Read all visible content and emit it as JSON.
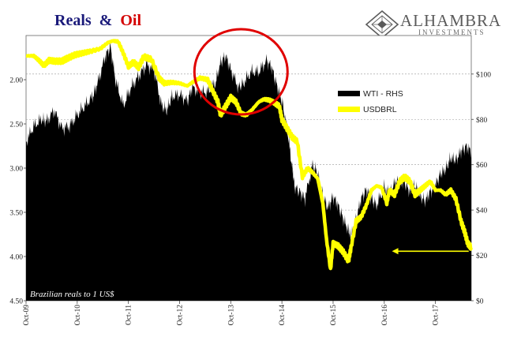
{
  "chart_data": {
    "type": "area",
    "title": {
      "part1": "Reals",
      "amp": "&",
      "part2": "Oil"
    },
    "title_colors": {
      "part1": "#1a1a7a",
      "part2": "#d40000"
    },
    "brand": {
      "name": "ALHAMBRA",
      "sub": "INVESTMENTS"
    },
    "x_ticks": [
      "Oct-09",
      "Oct-10",
      "Oct-11",
      "Oct-12",
      "Oct-13",
      "Oct-14",
      "Oct-15",
      "Oct-16",
      "Oct-17"
    ],
    "x_range": [
      2009.75,
      2018.45
    ],
    "left_axis": {
      "ticks": [
        "2.00",
        "2.50",
        "3.00",
        "3.50",
        "4.00",
        "4.50"
      ],
      "range": [
        1.5,
        4.5
      ],
      "inverted": true
    },
    "right_axis": {
      "ticks": [
        "$0",
        "$20",
        "$40",
        "$60",
        "$80",
        "$100"
      ],
      "range": [
        0,
        117
      ]
    },
    "legend": [
      {
        "name": "WTI - RHS",
        "color": "#000000"
      },
      {
        "name": "USDBRL",
        "color": "#ffff00"
      }
    ],
    "note": "Brazilian reals to 1 US$",
    "series": [
      {
        "name": "WTI - RHS",
        "axis": "right",
        "color": "#000000",
        "points": [
          [
            2009.75,
            70
          ],
          [
            2009.9,
            77
          ],
          [
            2010.05,
            80
          ],
          [
            2010.15,
            79
          ],
          [
            2010.3,
            84
          ],
          [
            2010.45,
            76
          ],
          [
            2010.6,
            77
          ],
          [
            2010.75,
            82
          ],
          [
            2010.9,
            86
          ],
          [
            2011.05,
            90
          ],
          [
            2011.15,
            96
          ],
          [
            2011.3,
            108
          ],
          [
            2011.4,
            112
          ],
          [
            2011.5,
            97
          ],
          [
            2011.65,
            86
          ],
          [
            2011.8,
            94
          ],
          [
            2011.95,
            99
          ],
          [
            2012.1,
            104
          ],
          [
            2012.25,
            102
          ],
          [
            2012.4,
            86
          ],
          [
            2012.5,
            84
          ],
          [
            2012.6,
            90
          ],
          [
            2012.75,
            91
          ],
          [
            2012.9,
            88
          ],
          [
            2013.0,
            94
          ],
          [
            2013.15,
            92
          ],
          [
            2013.3,
            92
          ],
          [
            2013.45,
            96
          ],
          [
            2013.55,
            105
          ],
          [
            2013.65,
            108
          ],
          [
            2013.75,
            102
          ],
          [
            2013.9,
            94
          ],
          [
            2014.0,
            96
          ],
          [
            2014.15,
            101
          ],
          [
            2014.3,
            101
          ],
          [
            2014.45,
            106
          ],
          [
            2014.55,
            103
          ],
          [
            2014.65,
            95
          ],
          [
            2014.75,
            88
          ],
          [
            2014.85,
            76
          ],
          [
            2014.95,
            59
          ],
          [
            2015.0,
            50
          ],
          [
            2015.1,
            48
          ],
          [
            2015.2,
            45
          ],
          [
            2015.35,
            60
          ],
          [
            2015.45,
            56
          ],
          [
            2015.55,
            46
          ],
          [
            2015.65,
            41
          ],
          [
            2015.75,
            46
          ],
          [
            2015.85,
            42
          ],
          [
            2015.95,
            36
          ],
          [
            2016.05,
            31
          ],
          [
            2016.1,
            28
          ],
          [
            2016.2,
            36
          ],
          [
            2016.3,
            45
          ],
          [
            2016.4,
            49
          ],
          [
            2016.5,
            45
          ],
          [
            2016.6,
            42
          ],
          [
            2016.75,
            50
          ],
          [
            2016.85,
            47
          ],
          [
            2016.95,
            52
          ],
          [
            2017.05,
            53
          ],
          [
            2017.15,
            52
          ],
          [
            2017.25,
            48
          ],
          [
            2017.35,
            51
          ],
          [
            2017.45,
            46
          ],
          [
            2017.55,
            44
          ],
          [
            2017.65,
            48
          ],
          [
            2017.75,
            51
          ],
          [
            2017.85,
            56
          ],
          [
            2017.95,
            58
          ],
          [
            2018.05,
            63
          ],
          [
            2018.15,
            62
          ],
          [
            2018.25,
            66
          ],
          [
            2018.35,
            68
          ],
          [
            2018.45,
            66
          ]
        ]
      },
      {
        "name": "USDBRL",
        "axis": "left",
        "color": "#ffff00",
        "points": [
          [
            2009.75,
            1.73
          ],
          [
            2009.9,
            1.73
          ],
          [
            2010.0,
            1.78
          ],
          [
            2010.1,
            1.84
          ],
          [
            2010.2,
            1.78
          ],
          [
            2010.3,
            1.79
          ],
          [
            2010.45,
            1.79
          ],
          [
            2010.55,
            1.76
          ],
          [
            2010.7,
            1.72
          ],
          [
            2010.85,
            1.7
          ],
          [
            2011.0,
            1.68
          ],
          [
            2011.2,
            1.65
          ],
          [
            2011.35,
            1.58
          ],
          [
            2011.45,
            1.56
          ],
          [
            2011.55,
            1.57
          ],
          [
            2011.65,
            1.7
          ],
          [
            2011.75,
            1.85
          ],
          [
            2011.85,
            1.8
          ],
          [
            2011.95,
            1.86
          ],
          [
            2012.05,
            1.74
          ],
          [
            2012.2,
            1.77
          ],
          [
            2012.35,
            1.98
          ],
          [
            2012.45,
            2.04
          ],
          [
            2012.6,
            2.03
          ],
          [
            2012.75,
            2.04
          ],
          [
            2012.9,
            2.07
          ],
          [
            2013.0,
            2.03
          ],
          [
            2013.15,
            1.98
          ],
          [
            2013.3,
            2.0
          ],
          [
            2013.4,
            2.13
          ],
          [
            2013.5,
            2.25
          ],
          [
            2013.55,
            2.4
          ],
          [
            2013.65,
            2.3
          ],
          [
            2013.75,
            2.2
          ],
          [
            2013.85,
            2.25
          ],
          [
            2013.95,
            2.38
          ],
          [
            2014.05,
            2.4
          ],
          [
            2014.15,
            2.35
          ],
          [
            2014.3,
            2.25
          ],
          [
            2014.4,
            2.22
          ],
          [
            2014.5,
            2.23
          ],
          [
            2014.6,
            2.26
          ],
          [
            2014.7,
            2.3
          ],
          [
            2014.75,
            2.45
          ],
          [
            2014.85,
            2.55
          ],
          [
            2014.95,
            2.65
          ],
          [
            2015.05,
            2.7
          ],
          [
            2015.15,
            3.1
          ],
          [
            2015.25,
            3.0
          ],
          [
            2015.35,
            3.05
          ],
          [
            2015.45,
            3.12
          ],
          [
            2015.55,
            3.4
          ],
          [
            2015.62,
            3.8
          ],
          [
            2015.7,
            4.15
          ],
          [
            2015.75,
            3.85
          ],
          [
            2015.85,
            3.88
          ],
          [
            2015.95,
            3.95
          ],
          [
            2016.05,
            4.05
          ],
          [
            2016.1,
            3.9
          ],
          [
            2016.2,
            3.6
          ],
          [
            2016.3,
            3.55
          ],
          [
            2016.4,
            3.42
          ],
          [
            2016.5,
            3.25
          ],
          [
            2016.6,
            3.2
          ],
          [
            2016.7,
            3.22
          ],
          [
            2016.8,
            3.4
          ],
          [
            2016.85,
            3.25
          ],
          [
            2016.95,
            3.3
          ],
          [
            2017.05,
            3.15
          ],
          [
            2017.15,
            3.1
          ],
          [
            2017.25,
            3.15
          ],
          [
            2017.35,
            3.3
          ],
          [
            2017.45,
            3.25
          ],
          [
            2017.55,
            3.2
          ],
          [
            2017.65,
            3.15
          ],
          [
            2017.75,
            3.25
          ],
          [
            2017.85,
            3.25
          ],
          [
            2017.95,
            3.3
          ],
          [
            2018.05,
            3.25
          ],
          [
            2018.15,
            3.35
          ],
          [
            2018.25,
            3.6
          ],
          [
            2018.32,
            3.72
          ],
          [
            2018.38,
            3.85
          ],
          [
            2018.45,
            3.9
          ]
        ]
      }
    ],
    "annotations": [
      {
        "type": "circle",
        "color": "#e00000",
        "center": [
          2013.95,
          101
        ],
        "axis": "right"
      },
      {
        "type": "arrow",
        "color": "#ffff00",
        "from": [
          2018.4,
          3.94
        ],
        "to": [
          2016.9,
          3.94
        ],
        "axis": "left"
      }
    ]
  }
}
